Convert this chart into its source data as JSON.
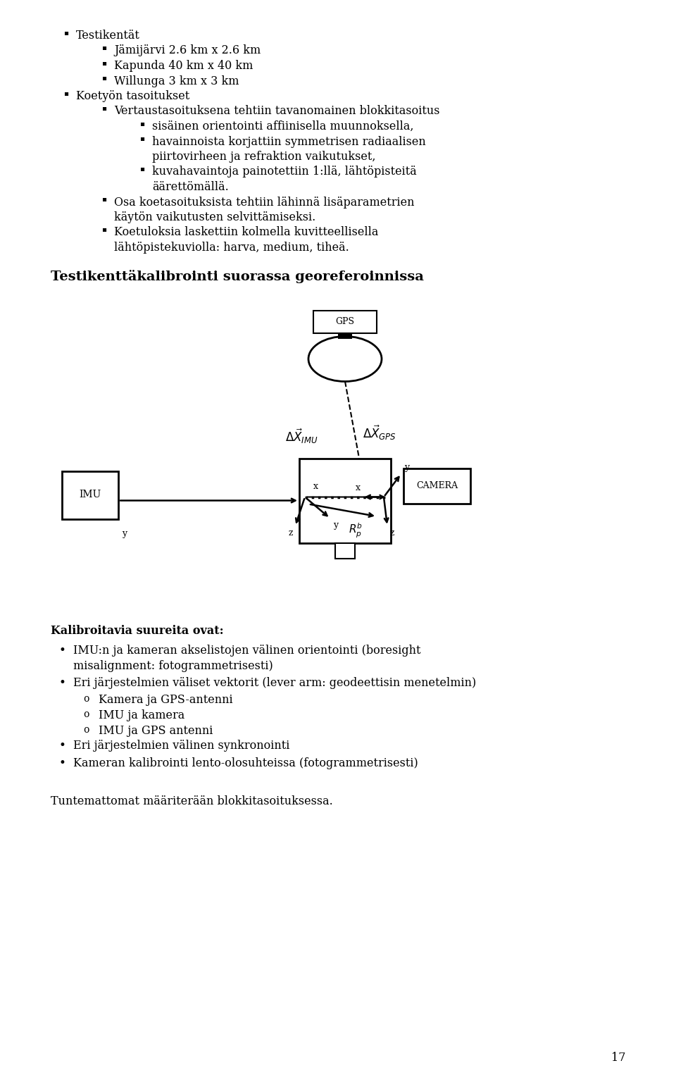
{
  "bg_color": "#ffffff",
  "text_color": "#000000",
  "page_number": "17",
  "section_title": "Testikenttäkalibrointi suorassa georeferoinnissa",
  "bullet_items": [
    {
      "level": 0,
      "text": "Testikentät"
    },
    {
      "level": 1,
      "text": "Jämijärvi 2.6 km x 2.6 km"
    },
    {
      "level": 1,
      "text": "Kapunda 40 km x 40 km"
    },
    {
      "level": 1,
      "text": "Willunga 3 km x 3 km"
    },
    {
      "level": 0,
      "text": "Koetyön tasoitukset"
    },
    {
      "level": 1,
      "text": "Vertaustasoituksena tehtiin tavanomainen blokkitasoitus"
    },
    {
      "level": 2,
      "text": "sisäinen orientointi affiinisella muunnoksella,"
    },
    {
      "level": 2,
      "text": "havainnoista  korjattiin  symmetrisen  radiaalisen piirtovirheen ja refraktion vaikutukset,",
      "wrap": true
    },
    {
      "level": 2,
      "text": "kuvahavaintoja  painotettiin  1:llä,  lähtöpisteitä äärettömällä.",
      "wrap": true
    },
    {
      "level": 1,
      "text": "Osa koetasoituksista tehtiin lähinnä lisäparametrien käytön vaikutusten selvittämiseksi.",
      "wrap": true
    },
    {
      "level": 1,
      "text": "Koetuloksia  laskettiin  kolmella  kuvitteellisella lähtöpistekuviolla: harva, medium, tiheä.",
      "wrap": true
    }
  ],
  "bottom_items": [
    {
      "style": "bold_normal",
      "text": "Kalibroitavia suureita ovat:"
    },
    {
      "style": "bullet",
      "text": "IMU:n ja kameran akselistojen välinen orientointi (boresight misalignment: fotogrammetrisesti)",
      "wrap": true
    },
    {
      "style": "bullet",
      "text": "Eri järjestelmien väliset vektorit (lever arm: geodeettisin menetelmin)"
    },
    {
      "style": "sub",
      "text": "Kamera ja GPS-antenni"
    },
    {
      "style": "sub",
      "text": "IMU ja kamera"
    },
    {
      "style": "sub",
      "text": "IMU ja GPS antenni"
    },
    {
      "style": "bullet",
      "text": "Eri järjestelmien välinen synkronointi"
    },
    {
      "style": "bullet",
      "text": "Kameran kalibrointi lento-olosuhteissa (fotogrammetrisesti)"
    }
  ],
  "footer_text": "Tuntemattomat määriterään blokkitasoituksessa."
}
